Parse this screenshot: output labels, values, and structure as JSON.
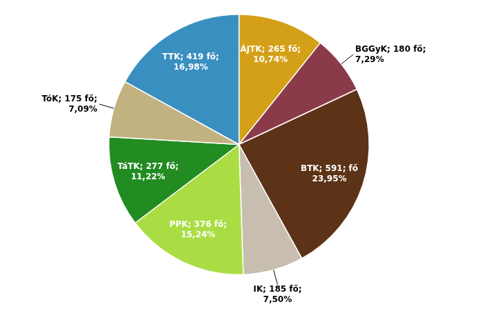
{
  "chart_data": {
    "type": "pie",
    "categories": [
      "ÁJTK",
      "BGGyK",
      "BTK",
      "IK",
      "PPK",
      "TáTK",
      "TóK",
      "TTK"
    ],
    "values": [
      265,
      180,
      591,
      185,
      376,
      277,
      175,
      419
    ],
    "value_labels": [
      "ÁJTK; 265 fő;\n10,74%",
      "BGGyK; 180 fő;\n7,29%",
      "BTK; 591; fő\n23,95%",
      "IK; 185 fő;\n7,50%",
      "PPK; 376 fő;\n15,24%",
      "TáTK; 277 fő;\n11,22%",
      "TóK; 175 fő;\n7,09%",
      "TTK; 419 fő;\n16,98%"
    ],
    "colors": [
      "#D4A017",
      "#8B3A4A",
      "#5C3317",
      "#C8BEB0",
      "#AADD44",
      "#228B22",
      "#C2B280",
      "#3A8FC1"
    ],
    "data_labels": true
  }
}
